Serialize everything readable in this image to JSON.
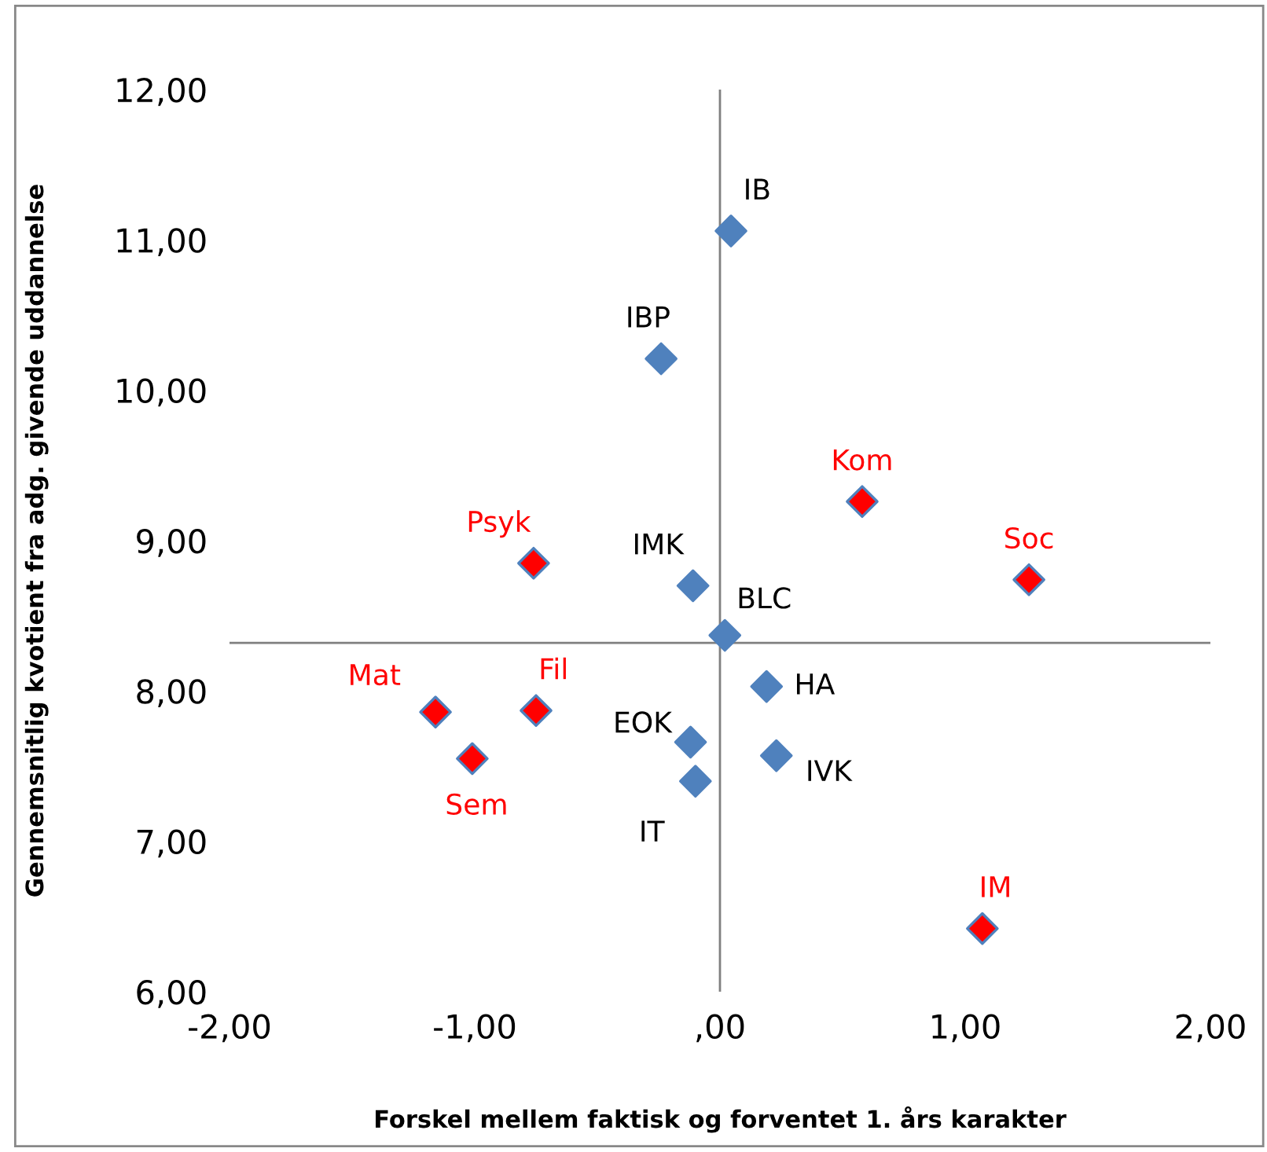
{
  "chart_data": {
    "type": "scatter",
    "xlabel": "Forskel mellem faktisk og forventet 1. års karakter",
    "ylabel": "Gennemsnitlig kvotient fra adg. givende uddannelse",
    "marker": "diamond",
    "grid": false,
    "legend": false,
    "series": [
      {
        "color": "#4f81bd",
        "x": [
          0.045,
          -0.24,
          -0.11,
          0.02,
          0.19,
          -0.12,
          0.23,
          -0.1
        ],
        "values": [
          11.06,
          10.21,
          8.7,
          8.37,
          8.03,
          7.66,
          7.57,
          7.4
        ]
      },
      {
        "color": "#ff0000",
        "x": [
          0.58,
          1.26,
          -0.76,
          -1.16,
          -0.75,
          -1.01,
          1.07
        ],
        "values": [
          9.26,
          8.74,
          8.85,
          7.86,
          7.87,
          7.55,
          6.42
        ]
      }
    ],
    "annotations": [
      {
        "text": "IB",
        "x": 0.045,
        "y": 11.06
      },
      {
        "text": "IBP",
        "x": -0.24,
        "y": 10.21
      },
      {
        "text": "IMK",
        "x": -0.11,
        "y": 8.7
      },
      {
        "text": "BLC",
        "x": 0.02,
        "y": 8.37
      },
      {
        "text": "HA",
        "x": 0.19,
        "y": 8.03
      },
      {
        "text": "EOK",
        "x": -0.12,
        "y": 7.66
      },
      {
        "text": "IVK",
        "x": 0.23,
        "y": 7.57
      },
      {
        "text": "IT",
        "x": -0.1,
        "y": 7.4
      },
      {
        "text": "Kom",
        "x": 0.58,
        "y": 9.26
      },
      {
        "text": "Soc",
        "x": 1.26,
        "y": 8.74
      },
      {
        "text": "Psyk",
        "x": -0.76,
        "y": 8.85
      },
      {
        "text": "Mat",
        "x": -1.16,
        "y": 7.86
      },
      {
        "text": "Fil",
        "x": -0.75,
        "y": 7.87
      },
      {
        "text": "Sem",
        "x": -1.01,
        "y": 7.55
      },
      {
        "text": "IM",
        "x": 1.07,
        "y": 6.42
      }
    ],
    "ref_lines": [
      {
        "axis": "y",
        "value": 8.32,
        "color": "#808080"
      },
      {
        "axis": "x",
        "value": 0,
        "color": "#808080"
      }
    ],
    "xlim": [
      -2,
      2
    ],
    "ylim": [
      6,
      12
    ],
    "xticks": [
      {
        "value": -2,
        "label": "-2,00"
      },
      {
        "value": -1,
        "label": "-1,00"
      },
      {
        "value": 0,
        "label": ",00"
      },
      {
        "value": 1,
        "label": "1,00"
      },
      {
        "value": 2,
        "label": "2,00"
      }
    ],
    "yticks": [
      {
        "value": 6,
        "label": "6,00"
      },
      {
        "value": 7,
        "label": "7,00"
      },
      {
        "value": 8,
        "label": "8,00"
      },
      {
        "value": 9,
        "label": "9,00"
      },
      {
        "value": 10,
        "label": "10,00"
      },
      {
        "value": 11,
        "label": "11,00"
      },
      {
        "value": 12,
        "label": "12,00"
      }
    ]
  }
}
